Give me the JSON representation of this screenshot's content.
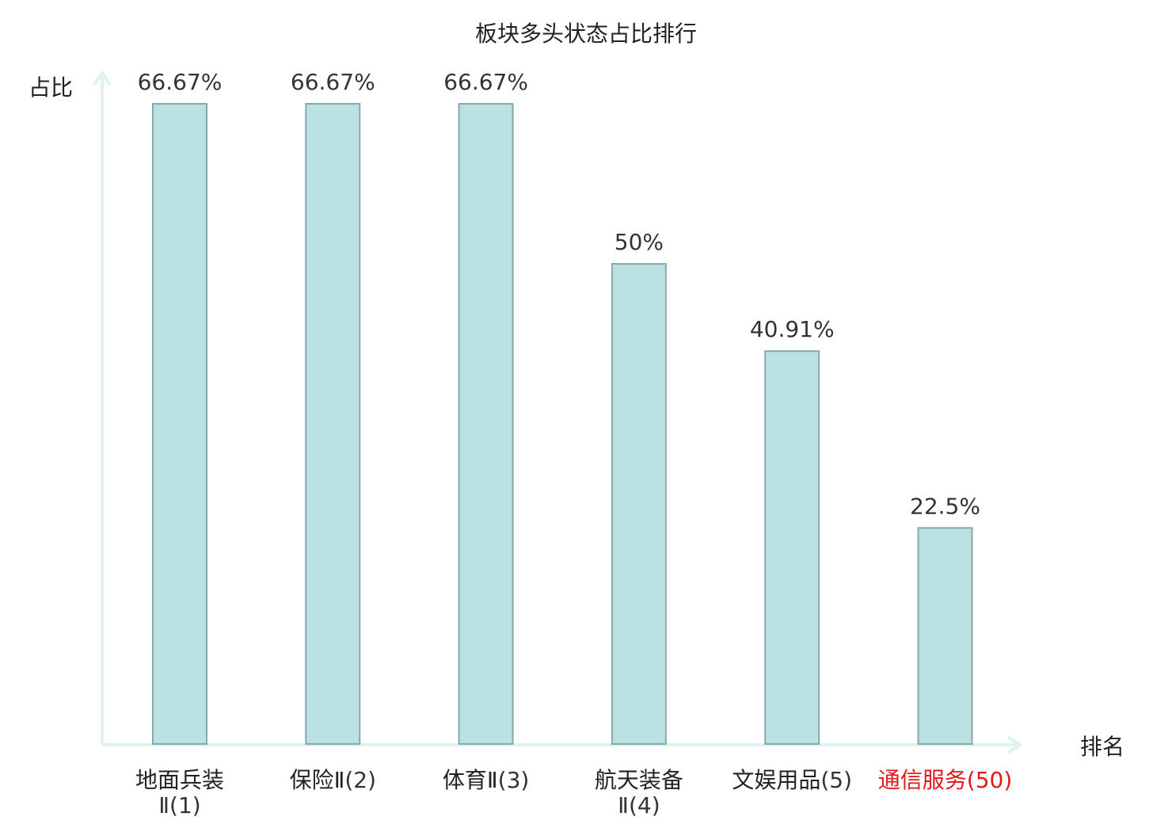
{
  "chart_data": {
    "type": "bar",
    "title": "板块多头状态占比排行",
    "ylabel": "占比",
    "xlabel": "排名",
    "ylim": [
      0,
      66.67
    ],
    "grid": false,
    "categories": [
      {
        "name": "地面兵装Ⅱ",
        "rank": "(1)",
        "highlight": false
      },
      {
        "name": "保险Ⅱ",
        "rank": "(2)",
        "highlight": false
      },
      {
        "name": "体育Ⅱ",
        "rank": "(3)",
        "highlight": false
      },
      {
        "name": "航天装备Ⅱ",
        "rank": "(4)",
        "highlight": false
      },
      {
        "name": "文娱用品",
        "rank": "(5)",
        "highlight": false
      },
      {
        "name": "通信服务",
        "rank": "(50)",
        "highlight": true
      }
    ],
    "values": [
      66.67,
      66.67,
      66.67,
      50,
      40.91,
      22.5
    ],
    "value_labels": [
      "66.67%",
      "66.67%",
      "66.67%",
      "50%",
      "40.91%",
      "22.5%"
    ],
    "colors": {
      "bar_fill": "#bce1e3",
      "bar_stroke": "#86a9ab",
      "axis": "#e0f2ef",
      "highlight": "#e0191c"
    }
  }
}
